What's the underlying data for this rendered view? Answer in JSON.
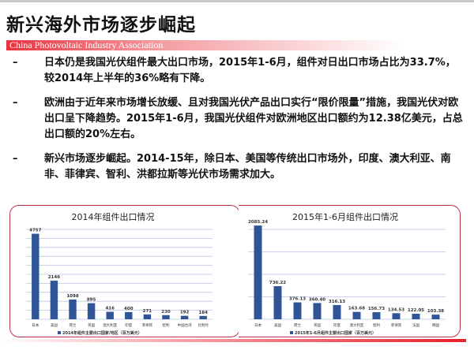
{
  "slide": {
    "title": "新兴海外市场逐步崛起",
    "org": "China Photovoltaic Industry Association",
    "bullets": [
      {
        "marker": "–",
        "text": "日本仍是我国光伏组件最大出口市场，2015年1-6月，组件对日出口市场占比为33.7%，较2014年上半年的36%略有下降。"
      },
      {
        "marker": "–",
        "text": "欧洲由于近年来市场增长放缓、且对我国光伏产品出口实行“限价限量”措施，我国光伏对欧出口呈下降趋势。2015年1-6月，我国光伏组件对欧洲地区出口额约为12.38亿美元，占总出口额的20%左右。"
      },
      {
        "marker": "–",
        "text": "新兴市场逐步崛起。2014-15年，除日本、美国等传统出口市场外，印度、澳大利亚、南非、菲律宾、智利、洪都拉斯等光伏市场需求加大。"
      }
    ]
  },
  "colors": {
    "bar": "#2f5597",
    "accent": "#e8343f",
    "grid": "#b7c6e0"
  },
  "chart_data": [
    {
      "type": "bar",
      "title": "2014年组件出口情况",
      "categories": [
        "日本",
        "美国",
        "荷兰",
        "英国",
        "澳大利亚",
        "印度",
        "菲律宾",
        "智利",
        "中国台湾",
        "比利时"
      ],
      "series": [
        {
          "name": "2014年组件主要出口国家/地区（百万美元）",
          "values": [
            4757,
            2146,
            1098,
            895,
            416,
            400,
            271,
            230,
            192,
            184
          ]
        }
      ],
      "labels": [
        "4757",
        "2146",
        "1098",
        "895",
        "416",
        "400",
        "271",
        "230",
        "192",
        "184"
      ],
      "ylim": [
        0,
        5000
      ],
      "grid": true,
      "legend": "bottom"
    },
    {
      "type": "bar",
      "title": "2015年1-6月组件出口情况",
      "categories": [
        "日本",
        "美国",
        "荷兰",
        "英国",
        "印度",
        "澳大利亚",
        "智利",
        "菲律宾",
        "法国",
        "韩国"
      ],
      "series": [
        {
          "name": "2015年1-6月组件主要出口国家（百万美元）",
          "values": [
            2085.24,
            736.22,
            376.13,
            360.4,
            316.13,
            163.68,
            156.73,
            134.53,
            122.05,
            103.38
          ]
        }
      ],
      "labels": [
        "2085.24",
        "736.22",
        "376.13",
        "360.40",
        "316.13",
        "163.68",
        "156.73",
        "134.53",
        "122.05",
        "103.38"
      ],
      "ylim": [
        0,
        2000
      ],
      "grid": true,
      "legend": "bottom"
    }
  ]
}
